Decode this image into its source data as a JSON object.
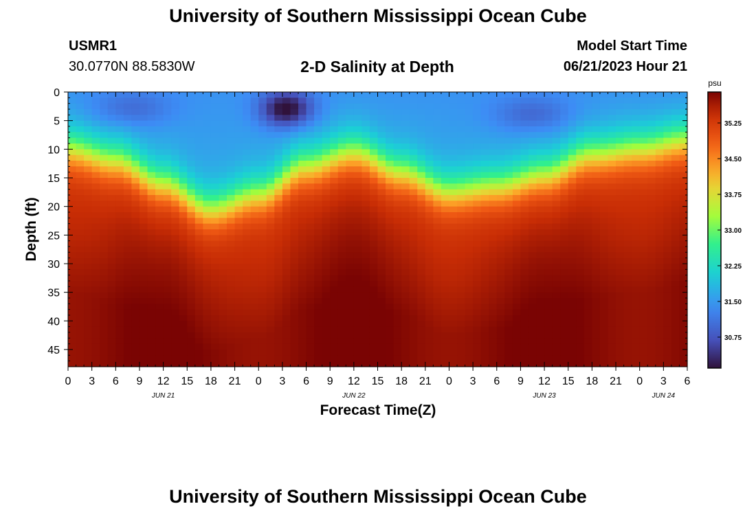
{
  "header": {
    "title": "University of Southern Mississippi Ocean Cube",
    "station": "USMR1",
    "coords": "30.0770N  88.5830W",
    "subtitle": "2-D Salinity at Depth",
    "model_start_label": "Model Start Time",
    "model_start_value": "06/21/2023 Hour 21"
  },
  "footer": {
    "title": "University of Southern Mississippi Ocean Cube"
  },
  "chart_data": {
    "type": "heatmap",
    "title": "2-D Salinity at Depth",
    "xlabel": "Forecast Time(Z)",
    "ylabel": "Depth (ft)",
    "x_ticks": [
      "0",
      "3",
      "6",
      "9",
      "12",
      "15",
      "18",
      "21",
      "0",
      "3",
      "6",
      "9",
      "12",
      "15",
      "18",
      "21",
      "0",
      "3",
      "6",
      "9",
      "12",
      "15",
      "18",
      "21",
      "0",
      "3",
      "6"
    ],
    "x_range_hours": [
      0,
      78
    ],
    "date_labels": [
      {
        "label": "JUN 21",
        "hour": 12
      },
      {
        "label": "JUN 22",
        "hour": 36
      },
      {
        "label": "JUN 23",
        "hour": 60
      },
      {
        "label": "JUN 24",
        "hour": 75
      }
    ],
    "y_ticks": [
      0,
      5,
      10,
      15,
      20,
      25,
      30,
      35,
      40,
      45
    ],
    "y_range_ft": [
      0,
      48
    ],
    "colorbar": {
      "unit": "psu",
      "range": [
        30.1,
        35.9
      ],
      "ticks": [
        "35.25",
        "34.50",
        "33.75",
        "33.00",
        "32.25",
        "31.50",
        "30.75"
      ]
    },
    "halocline_depth_ft": {
      "hours": [
        0,
        6,
        12,
        18,
        24,
        30,
        36,
        42,
        48,
        54,
        60,
        66,
        72,
        78
      ],
      "depth": [
        10,
        12,
        16,
        20.5,
        18,
        13,
        10.5,
        14,
        17.5,
        16.5,
        14.5,
        11,
        10,
        8.5
      ]
    },
    "surface_min_psu": 30.2,
    "deep_max_psu": 35.85
  },
  "colors": {
    "background": "#ffffff",
    "axis": "#000000"
  }
}
